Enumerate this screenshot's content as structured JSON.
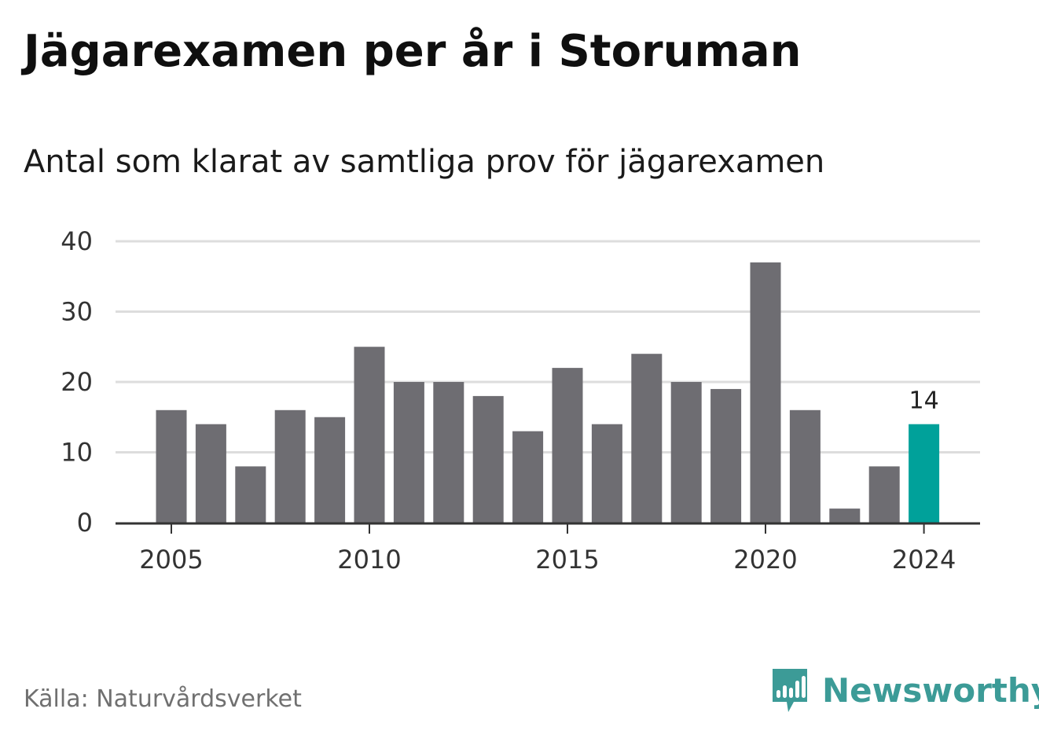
{
  "title": "Jägarexamen per år i Storuman",
  "subtitle": "Antal som klarat av samtliga prov för jägarexamen",
  "source": "Källa: Naturvårdsverket",
  "brand": {
    "name": "Newsworthy",
    "icon": "newsworthy-logo-icon",
    "color": "#3c9b97"
  },
  "colors": {
    "bar": "#6e6d72",
    "highlight": "#00a19a",
    "grid": "#dddddd",
    "axis": "#333333"
  },
  "chart_data": {
    "type": "bar",
    "title": "Jägarexamen per år i Storuman",
    "subtitle": "Antal som klarat av samtliga prov för jägarexamen",
    "xlabel": "",
    "ylabel": "",
    "x": [
      2005,
      2006,
      2007,
      2008,
      2009,
      2010,
      2011,
      2012,
      2013,
      2014,
      2015,
      2016,
      2017,
      2018,
      2019,
      2020,
      2021,
      2022,
      2023,
      2024
    ],
    "values": [
      16,
      14,
      8,
      16,
      15,
      25,
      20,
      20,
      18,
      13,
      22,
      14,
      24,
      20,
      19,
      37,
      16,
      2,
      8,
      14
    ],
    "ylim": [
      0,
      40
    ],
    "yticks": [
      0,
      10,
      20,
      30,
      40
    ],
    "xticks": [
      "2005",
      "2010",
      "2015",
      "2020",
      "2024"
    ],
    "highlight": {
      "x": 2024,
      "label": "14"
    },
    "grid": true,
    "legend": "none"
  }
}
